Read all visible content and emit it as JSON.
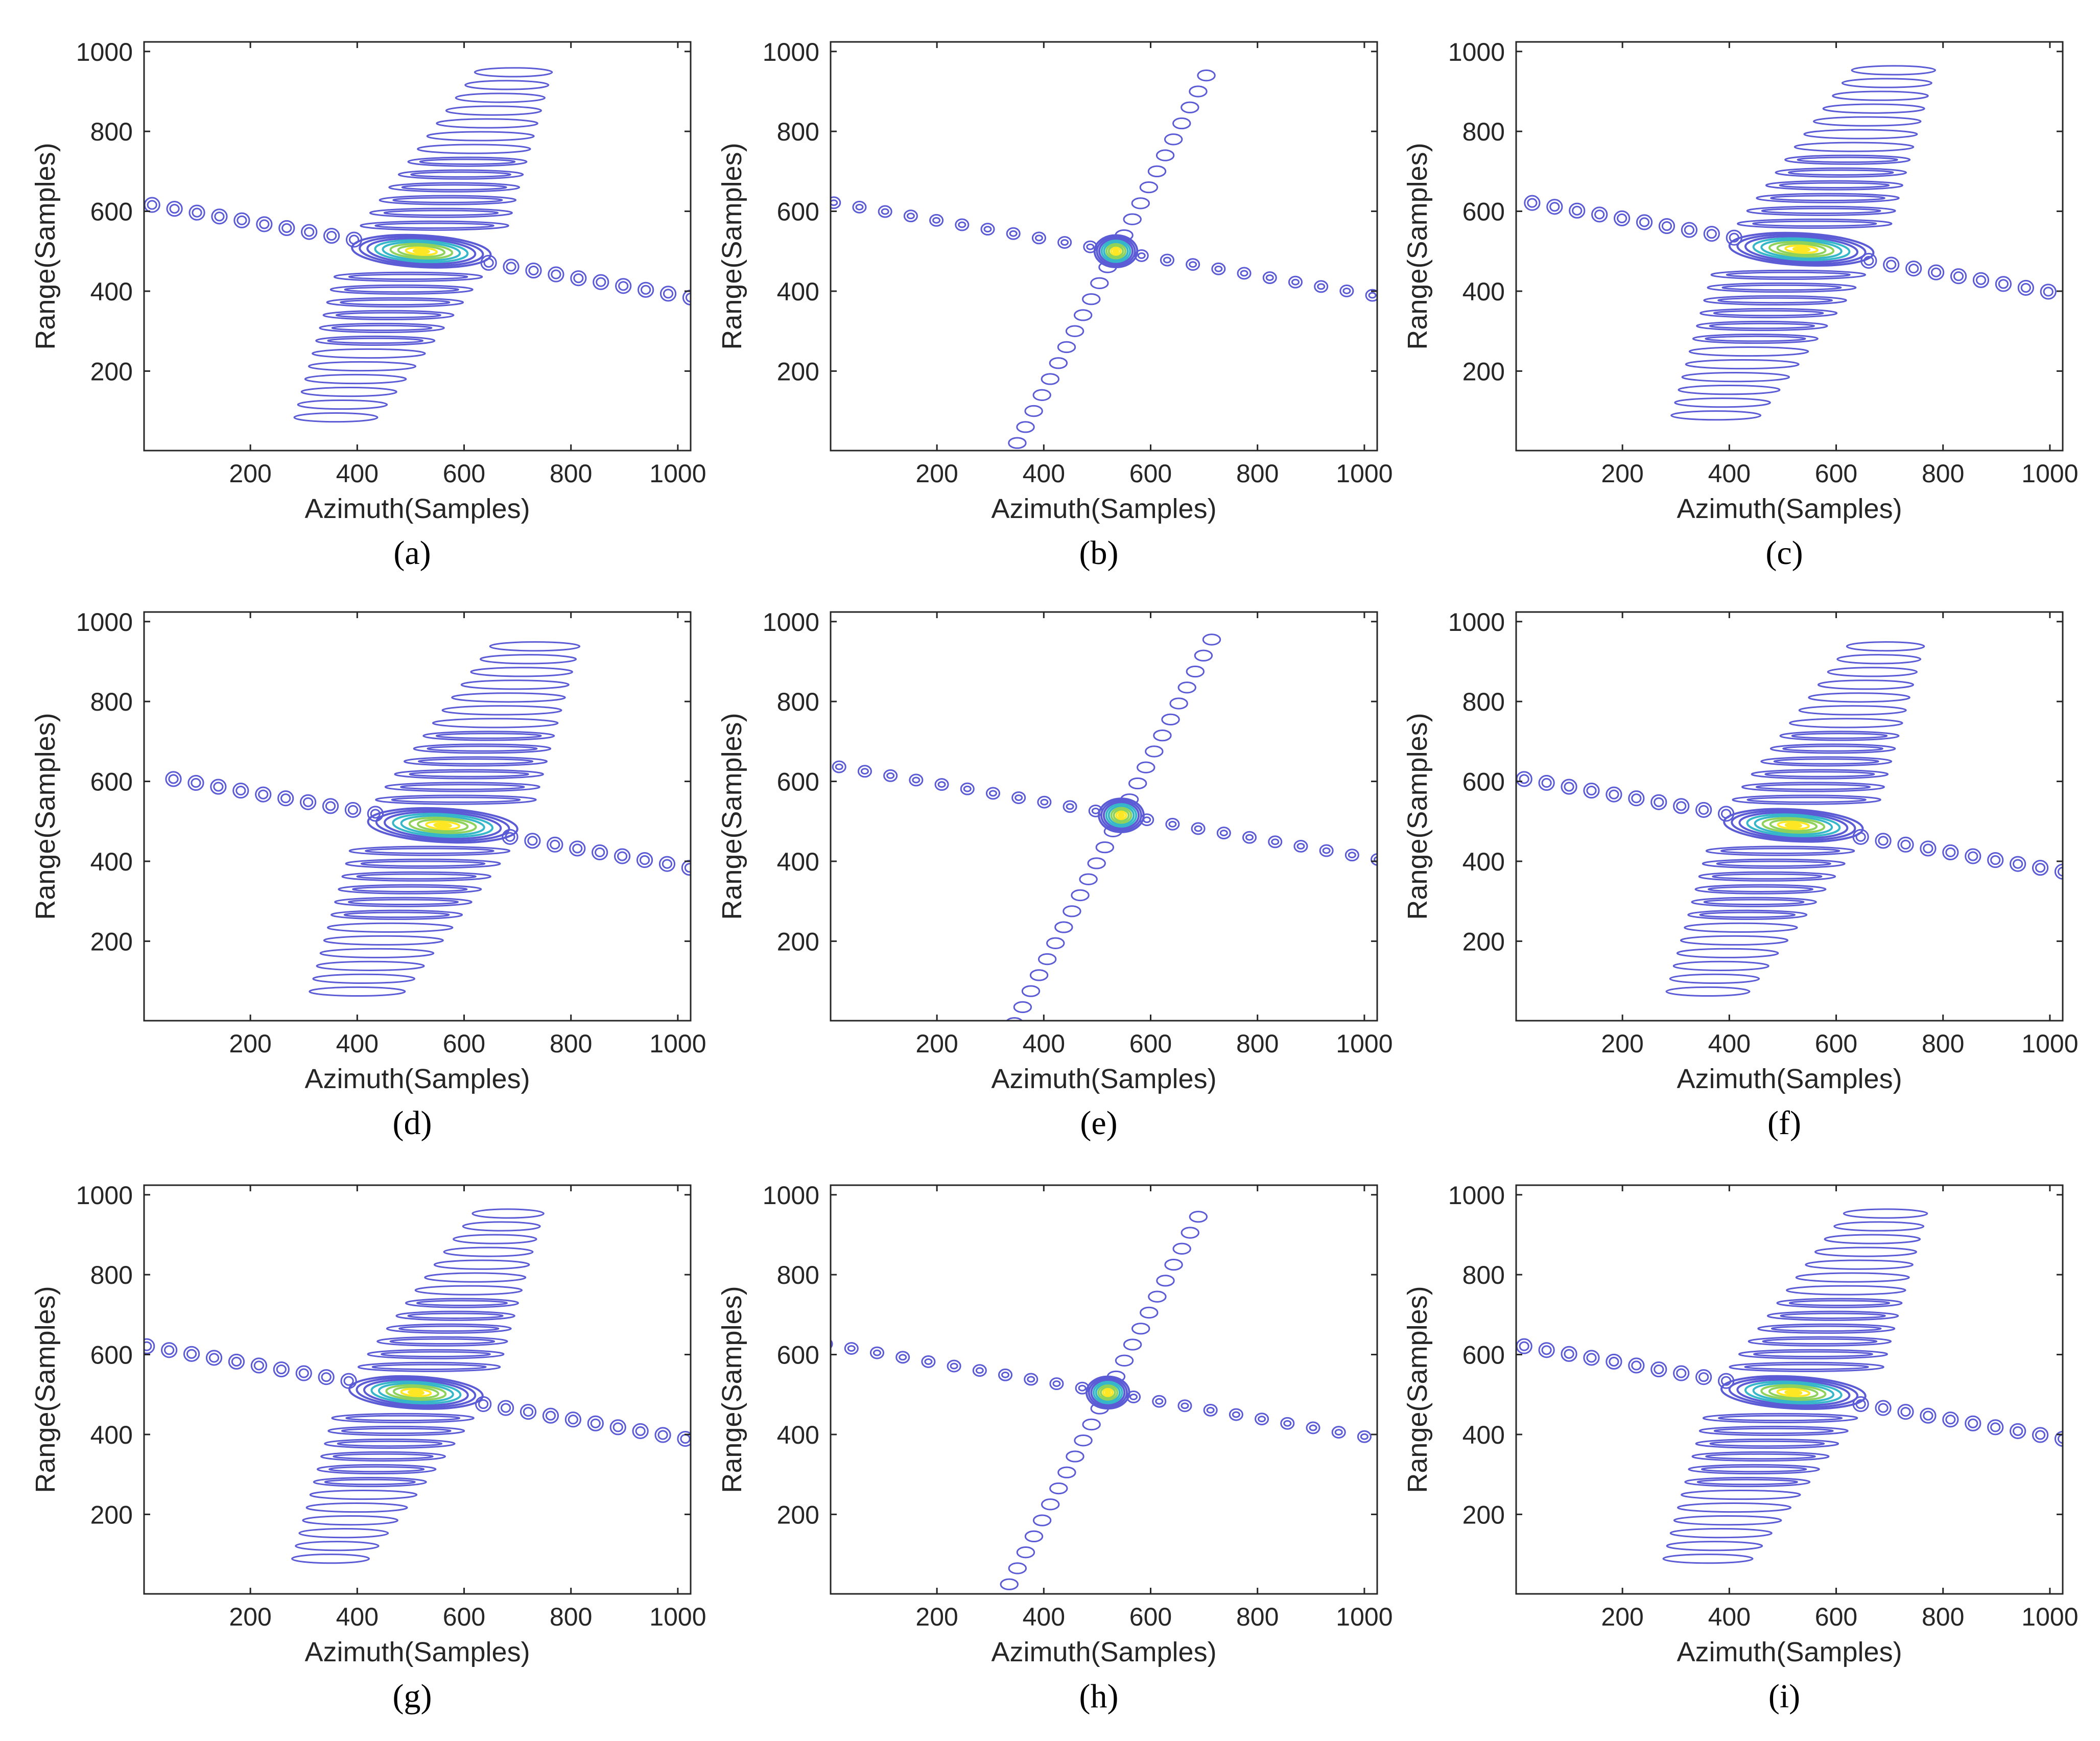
{
  "figure": {
    "colors": {
      "contour_outer": "#5b5bd6",
      "contour_mid": "#36b7c9",
      "contour_inner": "#8ed15b",
      "contour_peak": "#fde725",
      "axis": "#262626"
    }
  },
  "chart_data": [
    {
      "panel": "a",
      "caption": "(a)",
      "type": "contour",
      "xlabel": "Azimuth(Samples)",
      "ylabel": "Range(Samples)",
      "xlim": [
        1,
        1024
      ],
      "ylim": [
        1,
        1024
      ],
      "xticks": [
        200,
        400,
        600,
        800,
        1000
      ],
      "yticks": [
        200,
        400,
        600,
        800,
        1000
      ],
      "peak": [
        520,
        500
      ],
      "variant": "wide",
      "azimuth_spread": 130,
      "range_spread": 40
    },
    {
      "panel": "b",
      "caption": "(b)",
      "type": "contour",
      "xlabel": "Azimuth(Samples)",
      "ylabel": "Range(Samples)",
      "xlim": [
        1,
        1024
      ],
      "ylim": [
        1,
        1024
      ],
      "xticks": [
        200,
        400,
        600,
        800,
        1000
      ],
      "yticks": [
        200,
        400,
        600,
        800,
        1000
      ],
      "peak": [
        535,
        500
      ],
      "variant": "focused",
      "azimuth_spread": 40,
      "range_spread": 40
    },
    {
      "panel": "c",
      "caption": "(c)",
      "type": "contour",
      "xlabel": "Azimuth(Samples)",
      "ylabel": "Range(Samples)",
      "xlim": [
        1,
        1024
      ],
      "ylim": [
        1,
        1024
      ],
      "xticks": [
        200,
        400,
        600,
        800,
        1000
      ],
      "yticks": [
        200,
        400,
        600,
        800,
        1000
      ],
      "peak": [
        535,
        505
      ],
      "variant": "wide",
      "azimuth_spread": 135,
      "range_spread": 40
    },
    {
      "panel": "d",
      "caption": "(d)",
      "type": "contour",
      "xlabel": "Azimuth(Samples)",
      "ylabel": "Range(Samples)",
      "xlim": [
        1,
        1024
      ],
      "ylim": [
        1,
        1024
      ],
      "xticks": [
        200,
        400,
        600,
        800,
        1000
      ],
      "yticks": [
        200,
        400,
        600,
        800,
        1000
      ],
      "peak": [
        560,
        490
      ],
      "variant": "wide",
      "azimuth_spread": 140,
      "range_spread": 42
    },
    {
      "panel": "e",
      "caption": "(e)",
      "type": "contour",
      "xlabel": "Azimuth(Samples)",
      "ylabel": "Range(Samples)",
      "xlim": [
        1,
        1024
      ],
      "ylim": [
        1,
        1024
      ],
      "xticks": [
        200,
        400,
        600,
        800,
        1000
      ],
      "yticks": [
        200,
        400,
        600,
        800,
        1000
      ],
      "peak": [
        545,
        515
      ],
      "variant": "focused",
      "azimuth_spread": 42,
      "range_spread": 42
    },
    {
      "panel": "f",
      "caption": "(f)",
      "type": "contour",
      "xlabel": "Azimuth(Samples)",
      "ylabel": "Range(Samples)",
      "xlim": [
        1,
        1024
      ],
      "ylim": [
        1,
        1024
      ],
      "xticks": [
        200,
        400,
        600,
        800,
        1000
      ],
      "yticks": [
        200,
        400,
        600,
        800,
        1000
      ],
      "peak": [
        520,
        490
      ],
      "variant": "wide",
      "azimuth_spread": 130,
      "range_spread": 40
    },
    {
      "panel": "g",
      "caption": "(g)",
      "type": "contour",
      "xlabel": "Azimuth(Samples)",
      "ylabel": "Range(Samples)",
      "xlim": [
        1,
        1024
      ],
      "ylim": [
        1,
        1024
      ],
      "xticks": [
        200,
        400,
        600,
        800,
        1000
      ],
      "yticks": [
        200,
        400,
        600,
        800,
        1000
      ],
      "peak": [
        510,
        505
      ],
      "variant": "wide",
      "azimuth_spread": 125,
      "range_spread": 40
    },
    {
      "panel": "h",
      "caption": "(h)",
      "type": "contour",
      "xlabel": "Azimuth(Samples)",
      "ylabel": "Range(Samples)",
      "xlim": [
        1,
        1024
      ],
      "ylim": [
        1,
        1024
      ],
      "xticks": [
        200,
        400,
        600,
        800,
        1000
      ],
      "yticks": [
        200,
        400,
        600,
        800,
        1000
      ],
      "peak": [
        520,
        505
      ],
      "variant": "focused",
      "azimuth_spread": 40,
      "range_spread": 40
    },
    {
      "panel": "i",
      "caption": "(i)",
      "type": "contour",
      "xlabel": "Azimuth(Samples)",
      "ylabel": "Range(Samples)",
      "xlim": [
        1,
        1024
      ],
      "ylim": [
        1,
        1024
      ],
      "xticks": [
        200,
        400,
        600,
        800,
        1000
      ],
      "yticks": [
        200,
        400,
        600,
        800,
        1000
      ],
      "peak": [
        520,
        505
      ],
      "variant": "wide",
      "azimuth_spread": 135,
      "range_spread": 40
    }
  ]
}
